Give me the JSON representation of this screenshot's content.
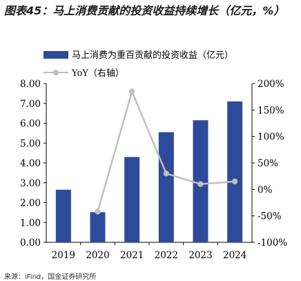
{
  "figure": {
    "title": "图表45：马上消费贡献的投资收益持续增长（亿元，%）",
    "source": "来源：iFind，国金证券研究所"
  },
  "chart_data": {
    "type": "bar",
    "categories": [
      "2019",
      "2020",
      "2021",
      "2022",
      "2023",
      "2024"
    ],
    "series": [
      {
        "name": "马上消费为重百贡献的投资收益（亿元）",
        "type": "bar",
        "axis": "left",
        "values": [
          2.65,
          1.52,
          4.3,
          5.55,
          6.15,
          7.1
        ],
        "color": "#2e4a9a"
      },
      {
        "name": "YoY（右轴）",
        "type": "line",
        "axis": "right",
        "values": [
          null,
          -42,
          185,
          30,
          10,
          15
        ],
        "color": "#bfbfbf"
      }
    ],
    "y_left": {
      "min": 0,
      "max": 8,
      "step": 1,
      "ticks": [
        "0.00",
        "1.00",
        "2.00",
        "3.00",
        "4.00",
        "5.00",
        "6.00",
        "7.00",
        "8.00"
      ]
    },
    "y_right": {
      "min": -100,
      "max": 200,
      "step": 50,
      "ticks": [
        "-100%",
        "-50%",
        "0%",
        "50%",
        "100%",
        "150%",
        "200%"
      ]
    },
    "legend_position": "top-left",
    "grid": false
  }
}
